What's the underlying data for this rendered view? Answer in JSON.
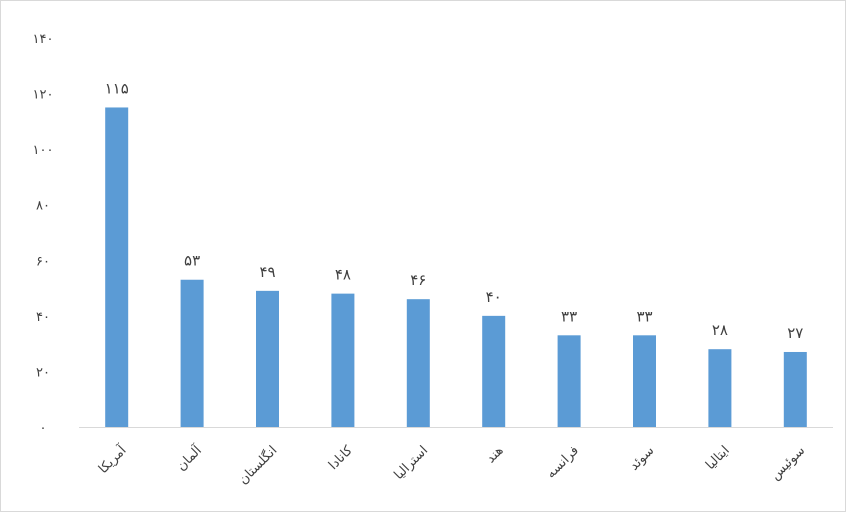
{
  "chart_data": {
    "type": "bar",
    "categories": [
      "آمریکا",
      "آلمان",
      "انگلستان",
      "کانادا",
      "استرالیا",
      "هند",
      "فرانسه",
      "سوئد",
      "ایتالیا",
      "سوئیس"
    ],
    "values": [
      115,
      53,
      49,
      48,
      46,
      40,
      33,
      33,
      28,
      27
    ],
    "value_labels": [
      "۱۱۵",
      "۵۳",
      "۴۹",
      "۴۸",
      "۴۶",
      "۴۰",
      "۳۳",
      "۳۳",
      "۲۸",
      "۲۷"
    ],
    "y_ticks": [
      0,
      20,
      40,
      60,
      80,
      100,
      120,
      140
    ],
    "y_tick_labels": [
      "۰",
      "۲۰",
      "۴۰",
      "۶۰",
      "۸۰",
      "۱۰۰",
      "۱۲۰",
      "۱۴۰"
    ],
    "ylim": [
      0,
      140
    ],
    "grid": false,
    "bar_color": "#5B9BD5",
    "title": "",
    "xlabel": "",
    "ylabel": ""
  }
}
